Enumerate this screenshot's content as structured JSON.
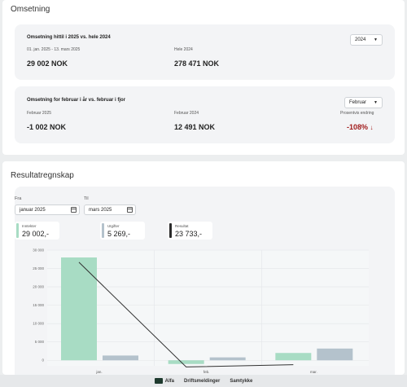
{
  "omsetning": {
    "title": "Omsetning",
    "card1": {
      "title": "Omsetning hittil i 2025 vs. hele 2024",
      "period_label": "01. jan. 2025 - 13. mars 2025",
      "period_value": "29 002 NOK",
      "compare_label": "Hele 2024",
      "compare_value": "278 471 NOK",
      "year_select": "2024"
    },
    "card2": {
      "title": "Omsetning for februar i år vs. februar i fjor",
      "current_label": "Februar 2025",
      "current_value": "-1 002 NOK",
      "previous_label": "Februar 2024",
      "previous_value": "12 491 NOK",
      "month_select": "Februar",
      "change_label": "Prosentvis endring",
      "change_value": "-108%",
      "change_arrow": "↓"
    }
  },
  "resultat": {
    "title": "Resultatregnskap",
    "from_label": "Fra",
    "from_value": "januar 2025",
    "to_label": "Til",
    "to_value": "mars 2025",
    "legend": [
      {
        "label": "Inntekter",
        "value": "29 002,-",
        "color": "#a8dcc4"
      },
      {
        "label": "Utgifter",
        "value": "5 269,-",
        "color": "#b4c2cc"
      },
      {
        "label": "Resultat",
        "value": "23 733,-",
        "color": "#2b2b2b"
      }
    ]
  },
  "chart_data": {
    "type": "bar",
    "categories": [
      "jan.",
      "feb.",
      "mar."
    ],
    "series": [
      {
        "name": "Inntekter",
        "values": [
          28000,
          -1002,
          2000
        ],
        "color": "#a8dcc4"
      },
      {
        "name": "Utgifter",
        "values": [
          1300,
          800,
          3200
        ],
        "color": "#b4c2cc"
      },
      {
        "name": "Resultat",
        "values": [
          26700,
          -1802,
          -1200
        ],
        "color": "#333333"
      }
    ],
    "ylim": [
      -1500,
      30000
    ],
    "yticks": [
      "30 000",
      "25 000",
      "20 000",
      "15 000",
      "10 000",
      "5 000",
      "0"
    ],
    "ytick_values": [
      30000,
      25000,
      20000,
      15000,
      10000,
      5000,
      0
    ]
  },
  "footer": {
    "items": [
      "Alfa",
      "Driftsmeldinger",
      "Samtykke"
    ]
  }
}
